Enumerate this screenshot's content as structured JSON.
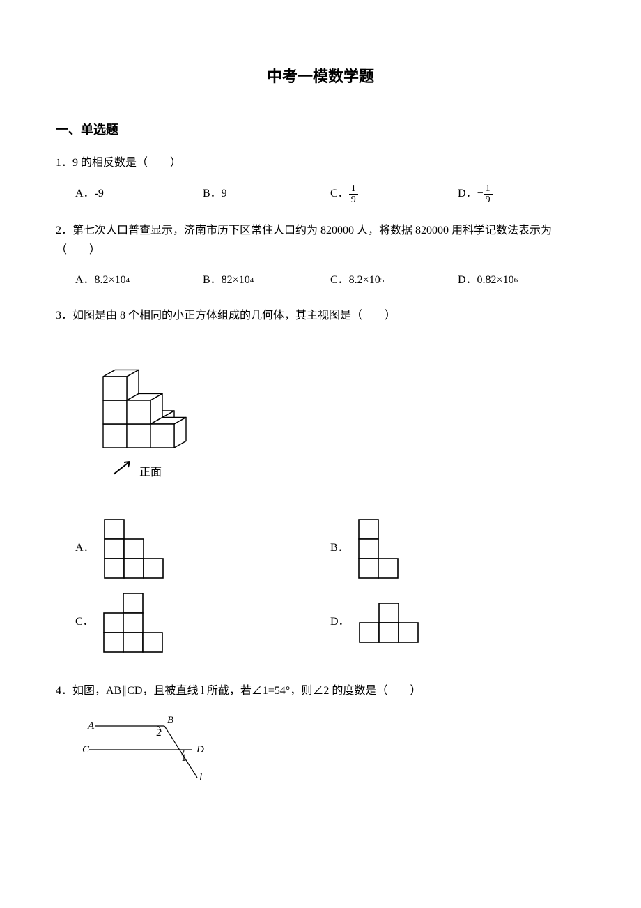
{
  "title": "中考一模数学题",
  "section1": "一、单选题",
  "q1": {
    "text": "1．9 的相反数是（　　）",
    "A": "A．-9",
    "B": "B．9",
    "C_prefix": "C．",
    "C_num": "1",
    "C_den": "9",
    "D_prefix": "D．",
    "D_sign": "−",
    "D_num": "1",
    "D_den": "9"
  },
  "q2": {
    "text": "2．第七次人口普查显示，济南市历下区常住人口约为 820000 人，将数据 820000 用科学记数法表示为（　　）",
    "A": "A．8.2×10",
    "A_sup": "4",
    "B": "B．82×10",
    "B_sup": "4",
    "C": "C．8.2×10",
    "C_sup": "5",
    "D": "D．0.82×10",
    "D_sup": "6"
  },
  "q3": {
    "text": "3．如图是由 8 个相同的小正方体组成的几何体，其主视图是（　　）",
    "front_label": "正面",
    "A": "A．",
    "B": "B．",
    "C": "C．",
    "D": "D．",
    "iso": {
      "fill": "#ffffff",
      "stroke": "#000000",
      "stroke_width": 1.4
    },
    "grid": {
      "cell": 28,
      "stroke": "#000000",
      "stroke_width": 1.6,
      "fill": "#ffffff"
    },
    "optA": {
      "cols": 3,
      "rows": 3,
      "cells": [
        [
          0,
          0
        ],
        [
          0,
          1
        ],
        [
          1,
          1
        ],
        [
          0,
          2
        ],
        [
          1,
          2
        ],
        [
          2,
          2
        ]
      ]
    },
    "optB": {
      "cols": 2,
      "rows": 3,
      "cells": [
        [
          0,
          0
        ],
        [
          0,
          1
        ],
        [
          0,
          2
        ],
        [
          1,
          2
        ]
      ]
    },
    "optC": {
      "cols": 3,
      "rows": 3,
      "cells": [
        [
          1,
          0
        ],
        [
          0,
          1
        ],
        [
          1,
          1
        ],
        [
          0,
          2
        ],
        [
          1,
          2
        ],
        [
          2,
          2
        ]
      ]
    },
    "optD": {
      "cols": 3,
      "rows": 2,
      "cells": [
        [
          1,
          0
        ],
        [
          0,
          1
        ],
        [
          1,
          1
        ],
        [
          2,
          1
        ]
      ]
    }
  },
  "q4": {
    "text": "4．如图，AB∥CD，且被直线 l 所截，若∠1=54°，则∠2 的度数是（　　）",
    "labels": {
      "A": "A",
      "B": "B",
      "C": "C",
      "D": "D",
      "l": "l",
      "a1": "1",
      "a2": "2"
    },
    "stroke": "#000000",
    "stroke_width": 1.2,
    "font_style": "italic",
    "font_size": 15
  }
}
